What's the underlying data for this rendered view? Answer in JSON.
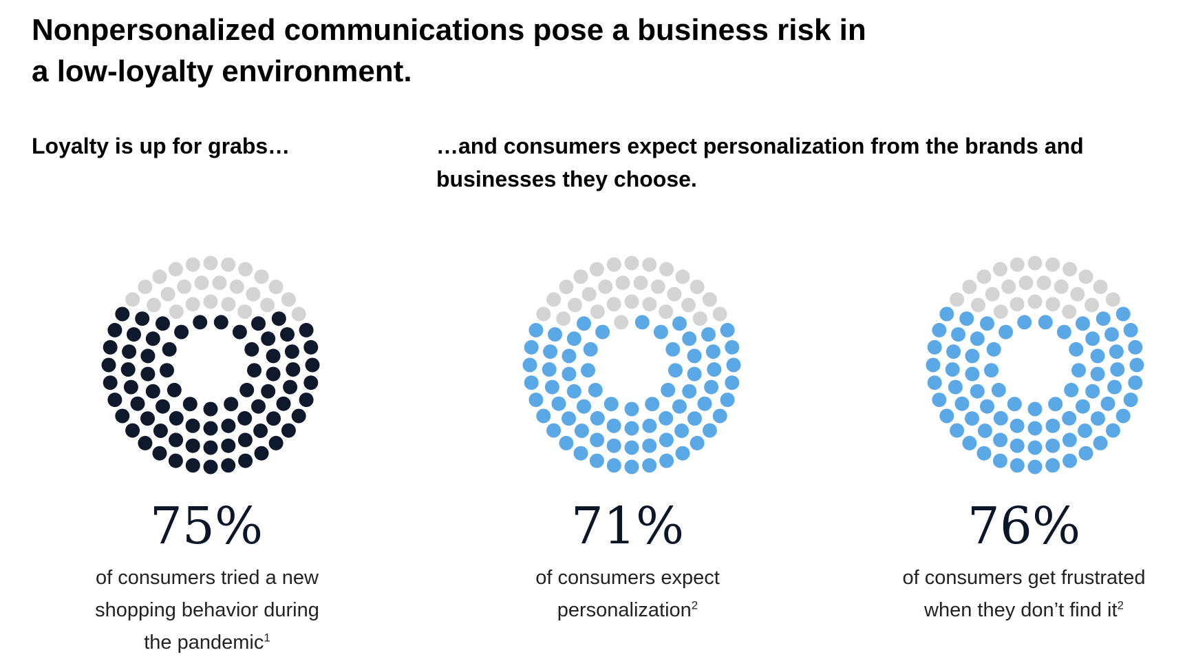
{
  "header": {
    "title_line1": "Nonpersonalized communications pose a business risk in",
    "title_line2": "a low-loyalty environment.",
    "subtitle_left": "Loyalty is up for grabs…",
    "subtitle_right_line1": "…and consumers expect personalization from the brands and",
    "subtitle_right_line2": "businesses they choose."
  },
  "colors": {
    "empty_dot": "#d4d4d4",
    "dark_fill": "#0e1a2b",
    "blue_fill": "#5aa9e6",
    "text": "#0b1629"
  },
  "chart_data": [
    {
      "type": "dot-circle",
      "value": 75,
      "value_label": "75%",
      "desc_lines": [
        "of consumers tried a new",
        "shopping behavior during",
        "the pandemic"
      ],
      "footnote": "1",
      "fill_color": "#0e1a2b"
    },
    {
      "type": "dot-circle",
      "value": 71,
      "value_label": "71%",
      "desc_lines": [
        "of consumers expect",
        "personalization"
      ],
      "footnote": "2",
      "fill_color": "#5aa9e6"
    },
    {
      "type": "dot-circle",
      "value": 76,
      "value_label": "76%",
      "desc_lines": [
        "of consumers get frustrated",
        "when they don’t find it"
      ],
      "footnote": "2",
      "fill_color": "#5aa9e6"
    }
  ]
}
